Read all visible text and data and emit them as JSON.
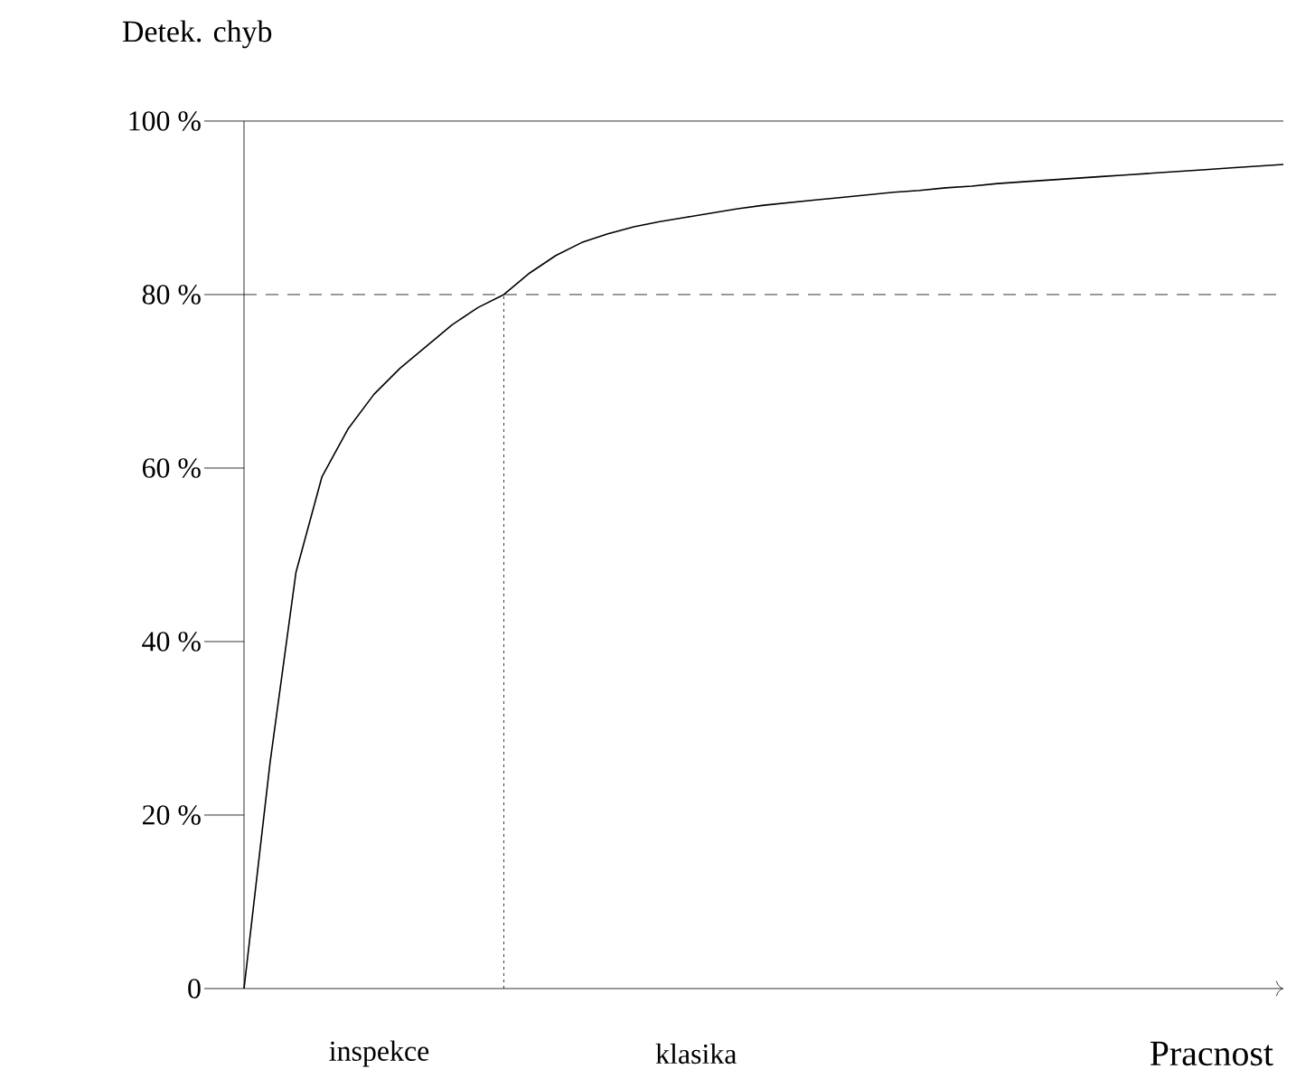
{
  "chart_data": {
    "type": "line",
    "ylabel": "Detek. chyb",
    "xlabel": "Pracnost",
    "annotations": [
      "inspekce",
      "klasika"
    ],
    "categories": [
      null,
      null,
      null,
      null,
      null,
      null,
      null,
      null,
      null,
      null,
      null,
      null,
      null,
      null,
      null,
      null,
      null,
      null,
      null,
      null,
      null,
      null,
      null,
      null,
      null,
      null,
      null,
      null,
      null,
      null,
      null,
      null,
      null,
      null,
      null,
      null,
      null,
      null,
      null,
      null,
      null
    ],
    "values": [
      0,
      26,
      48,
      59,
      64.5,
      68.5,
      71.5,
      74,
      76.5,
      78.5,
      80,
      82.5,
      84.5,
      86,
      87,
      87.8,
      88.4,
      88.9,
      89.4,
      89.9,
      90.3,
      90.6,
      90.9,
      91.2,
      91.5,
      91.8,
      92,
      92.3,
      92.5,
      92.8,
      93,
      93.2,
      93.4,
      93.6,
      93.8,
      94,
      94.2,
      94.4,
      94.6,
      94.8,
      95
    ],
    "color": "#000000",
    "line_style": "solid",
    "marker": "none",
    "grid": false,
    "ylim": [
      0,
      100
    ],
    "yticks": [
      0,
      {
        "value": 20,
        "label": "20 %"
      },
      {
        "value": 40,
        "label": "40 %"
      },
      {
        "value": 60,
        "label": "60 %"
      },
      {
        "value": 80,
        "label": "80 %"
      },
      {
        "value": 100,
        "label": "100 %"
      }
    ],
    "ref_lines": [
      {
        "axis": "y",
        "value": 80,
        "line_style": "dashed"
      },
      {
        "axis": "y",
        "value": 100,
        "line_style": "solid"
      }
    ]
  }
}
